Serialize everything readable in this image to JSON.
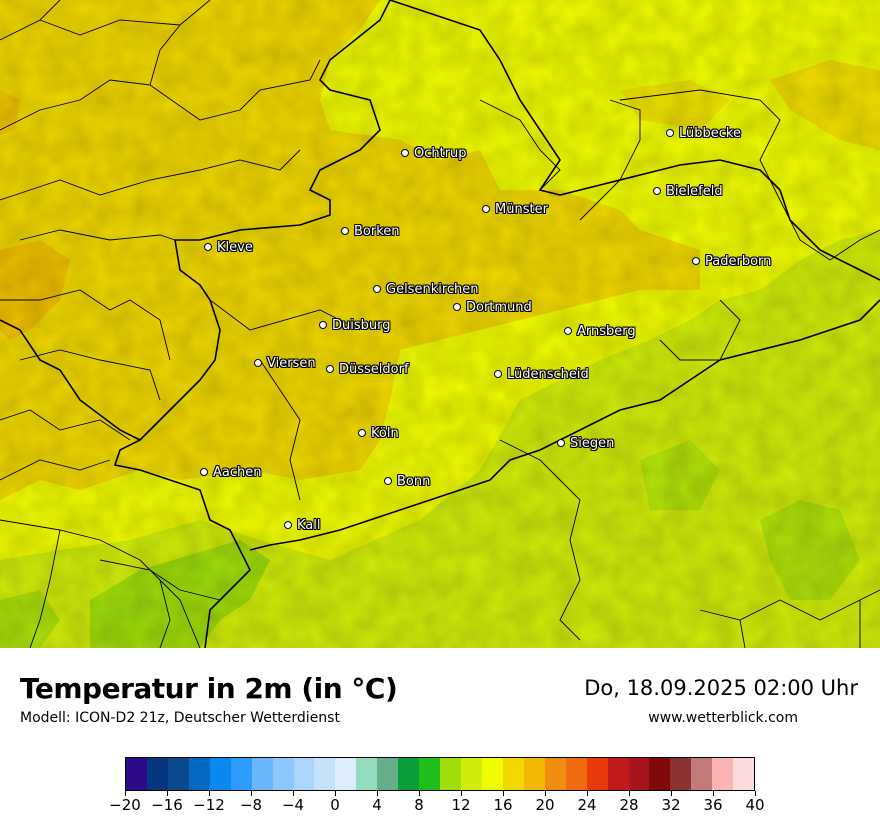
{
  "map": {
    "cities": [
      {
        "name": "Lübbecke"
      },
      {
        "name": "Ochtrup"
      },
      {
        "name": "Bielefeld"
      },
      {
        "name": "Münster"
      },
      {
        "name": "Borken"
      },
      {
        "name": "Kleve"
      },
      {
        "name": "Paderborn"
      },
      {
        "name": "Gelsenkirchen"
      },
      {
        "name": "Dortmund"
      },
      {
        "name": "Duisburg"
      },
      {
        "name": "Arnsberg"
      },
      {
        "name": "Viersen"
      },
      {
        "name": "Düsseldorf"
      },
      {
        "name": "Lüdenscheid"
      },
      {
        "name": "Köln"
      },
      {
        "name": "Siegen"
      },
      {
        "name": "Aachen"
      },
      {
        "name": "Bonn"
      },
      {
        "name": "Kall"
      }
    ]
  },
  "footer": {
    "title": "Temperatur in 2m (in °C)",
    "model": "Modell: ICON-D2 21z, Deutscher Wetterdienst",
    "datetime": "Do, 18.09.2025 02:00 Uhr",
    "website": "www.wetterblick.com"
  },
  "legend": {
    "colors": [
      "#2e0a8a",
      "#07377e",
      "#0a4a8c",
      "#0569c2",
      "#0a8af0",
      "#2d9cfc",
      "#6ab8fc",
      "#8cc8fc",
      "#aad6fc",
      "#c4e2fc",
      "#dcecfc",
      "#92dcc0",
      "#66ae8a",
      "#0a9e3a",
      "#20be1a",
      "#a0dc0a",
      "#d0ec0a",
      "#f0fc00",
      "#f0d800",
      "#f0b800",
      "#f08c10",
      "#f06a10",
      "#e83a0a",
      "#c01a1a",
      "#a8141e",
      "#7e0a0a",
      "#8c3232",
      "#c47a7a",
      "#fcb4b4",
      "#fcdcdc"
    ],
    "tick_labels": [
      "−20",
      "−16",
      "−12",
      "−8",
      "−4",
      "0",
      "4",
      "8",
      "12",
      "16",
      "20",
      "24",
      "28",
      "32",
      "36",
      "40"
    ],
    "min": -20,
    "max": 40
  }
}
